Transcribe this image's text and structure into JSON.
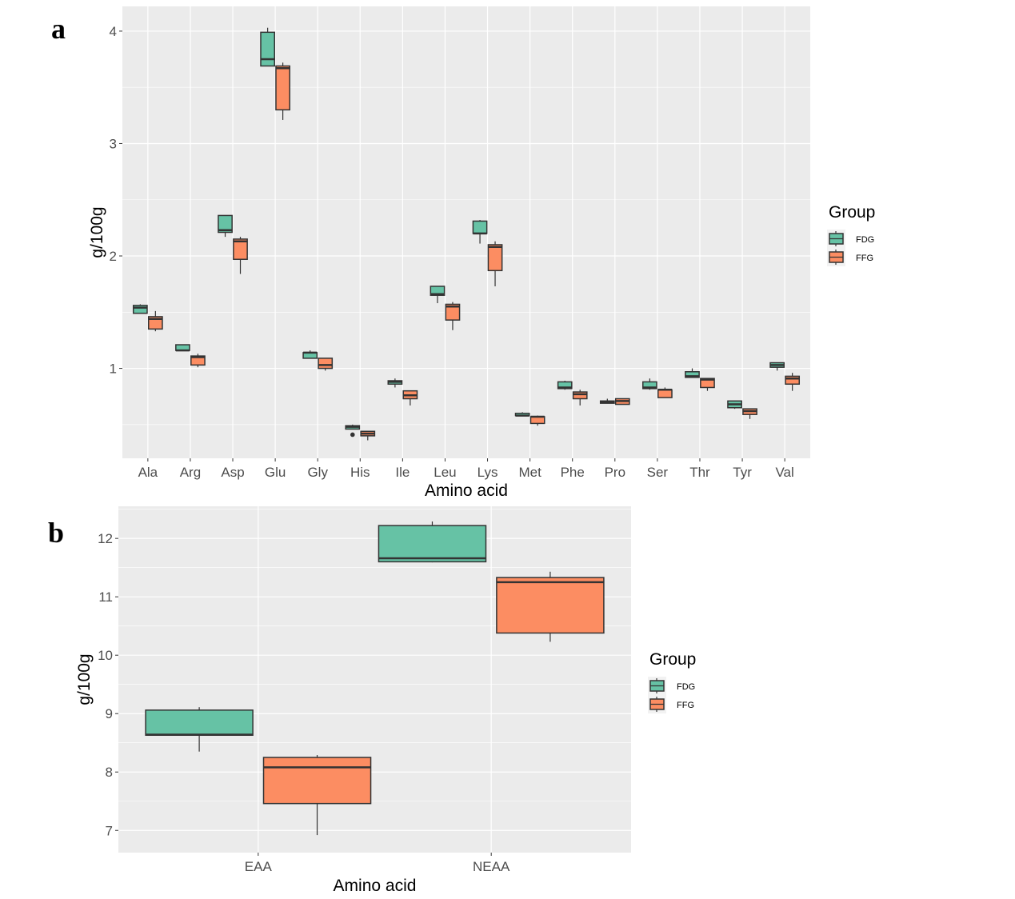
{
  "figure": {
    "panel_labels": [
      "a",
      "b"
    ],
    "legend": {
      "title": "Group",
      "items": [
        {
          "label": "FDG",
          "color": "#66c2a5"
        },
        {
          "label": "FFG",
          "color": "#fc8d62"
        }
      ]
    }
  },
  "chart_data": [
    {
      "type": "boxplot",
      "panel": "a",
      "title": "",
      "xlabel": "Amino acid",
      "ylabel": "g/100g",
      "ylim": [
        0.2,
        4.22
      ],
      "yticks": [
        1,
        2,
        3,
        4
      ],
      "grid": true,
      "legend_position": "right",
      "categories": [
        "Ala",
        "Arg",
        "Asp",
        "Glu",
        "Gly",
        "His",
        "Ile",
        "Leu",
        "Lys",
        "Met",
        "Phe",
        "Pro",
        "Ser",
        "Thr",
        "Tyr",
        "Val"
      ],
      "series": [
        {
          "name": "FDG",
          "color": "#66c2a5",
          "boxes": [
            {
              "min": 1.49,
              "q1": 1.49,
              "median": 1.54,
              "q3": 1.56,
              "max": 1.57
            },
            {
              "min": 1.16,
              "q1": 1.16,
              "median": 1.16,
              "q3": 1.21,
              "max": 1.21
            },
            {
              "min": 2.17,
              "q1": 2.21,
              "median": 2.23,
              "q3": 2.36,
              "max": 2.36
            },
            {
              "min": 3.69,
              "q1": 3.69,
              "median": 3.75,
              "q3": 3.99,
              "max": 4.03
            },
            {
              "min": 1.09,
              "q1": 1.09,
              "median": 1.14,
              "q3": 1.14,
              "max": 1.16
            },
            {
              "min": 0.46,
              "q1": 0.46,
              "median": 0.48,
              "q3": 0.49,
              "max": 0.5,
              "outliers": [
                0.41
              ]
            },
            {
              "min": 0.83,
              "q1": 0.86,
              "median": 0.88,
              "q3": 0.89,
              "max": 0.91
            },
            {
              "min": 1.58,
              "q1": 1.65,
              "median": 1.66,
              "q3": 1.73,
              "max": 1.73
            },
            {
              "min": 2.11,
              "q1": 2.2,
              "median": 2.2,
              "q3": 2.31,
              "max": 2.32
            },
            {
              "min": 0.58,
              "q1": 0.58,
              "median": 0.58,
              "q3": 0.6,
              "max": 0.61
            },
            {
              "min": 0.81,
              "q1": 0.82,
              "median": 0.83,
              "q3": 0.88,
              "max": 0.89
            },
            {
              "min": 0.69,
              "q1": 0.69,
              "median": 0.7,
              "q3": 0.71,
              "max": 0.73
            },
            {
              "min": 0.81,
              "q1": 0.82,
              "median": 0.83,
              "q3": 0.88,
              "max": 0.91
            },
            {
              "min": 0.92,
              "q1": 0.92,
              "median": 0.93,
              "q3": 0.97,
              "max": 1.0
            },
            {
              "min": 0.64,
              "q1": 0.65,
              "median": 0.68,
              "q3": 0.71,
              "max": 0.71
            },
            {
              "min": 0.98,
              "q1": 1.01,
              "median": 1.03,
              "q3": 1.05,
              "max": 1.05
            }
          ]
        },
        {
          "name": "FFG",
          "color": "#fc8d62",
          "boxes": [
            {
              "min": 1.33,
              "q1": 1.35,
              "median": 1.44,
              "q3": 1.46,
              "max": 1.51
            },
            {
              "min": 1.01,
              "q1": 1.03,
              "median": 1.1,
              "q3": 1.11,
              "max": 1.13
            },
            {
              "min": 1.84,
              "q1": 1.97,
              "median": 2.13,
              "q3": 2.15,
              "max": 2.17
            },
            {
              "min": 3.21,
              "q1": 3.3,
              "median": 3.67,
              "q3": 3.69,
              "max": 3.72
            },
            {
              "min": 0.98,
              "q1": 1.0,
              "median": 1.03,
              "q3": 1.09,
              "max": 1.09
            },
            {
              "min": 0.36,
              "q1": 0.4,
              "median": 0.42,
              "q3": 0.44,
              "max": 0.44
            },
            {
              "min": 0.67,
              "q1": 0.73,
              "median": 0.76,
              "q3": 0.8,
              "max": 0.8
            },
            {
              "min": 1.34,
              "q1": 1.43,
              "median": 1.55,
              "q3": 1.57,
              "max": 1.59
            },
            {
              "min": 1.73,
              "q1": 1.87,
              "median": 2.08,
              "q3": 2.1,
              "max": 2.13
            },
            {
              "min": 0.49,
              "q1": 0.51,
              "median": 0.57,
              "q3": 0.57,
              "max": 0.58
            },
            {
              "min": 0.67,
              "q1": 0.73,
              "median": 0.77,
              "q3": 0.79,
              "max": 0.81
            },
            {
              "min": 0.68,
              "q1": 0.68,
              "median": 0.71,
              "q3": 0.73,
              "max": 0.73
            },
            {
              "min": 0.74,
              "q1": 0.74,
              "median": 0.81,
              "q3": 0.81,
              "max": 0.83
            },
            {
              "min": 0.8,
              "q1": 0.83,
              "median": 0.9,
              "q3": 0.91,
              "max": 0.91
            },
            {
              "min": 0.55,
              "q1": 0.59,
              "median": 0.62,
              "q3": 0.64,
              "max": 0.64
            },
            {
              "min": 0.8,
              "q1": 0.86,
              "median": 0.91,
              "q3": 0.93,
              "max": 0.96
            }
          ]
        }
      ]
    },
    {
      "type": "boxplot",
      "panel": "b",
      "title": "",
      "xlabel": "Amino acid",
      "ylabel": "g/100g",
      "ylim": [
        6.62,
        12.55
      ],
      "yticks": [
        7,
        8,
        9,
        10,
        11,
        12
      ],
      "grid": true,
      "legend_position": "right",
      "categories": [
        "EAA",
        "NEAA"
      ],
      "series": [
        {
          "name": "FDG",
          "color": "#66c2a5",
          "boxes": [
            {
              "min": 8.35,
              "q1": 8.63,
              "median": 8.64,
              "q3": 9.06,
              "max": 9.11
            },
            {
              "min": 11.59,
              "q1": 11.6,
              "median": 11.66,
              "q3": 12.22,
              "max": 12.29
            }
          ]
        },
        {
          "name": "FFG",
          "color": "#fc8d62",
          "boxes": [
            {
              "min": 6.92,
              "q1": 7.46,
              "median": 8.08,
              "q3": 8.25,
              "max": 8.29
            },
            {
              "min": 10.23,
              "q1": 10.38,
              "median": 11.25,
              "q3": 11.33,
              "max": 11.43
            }
          ]
        }
      ]
    }
  ]
}
